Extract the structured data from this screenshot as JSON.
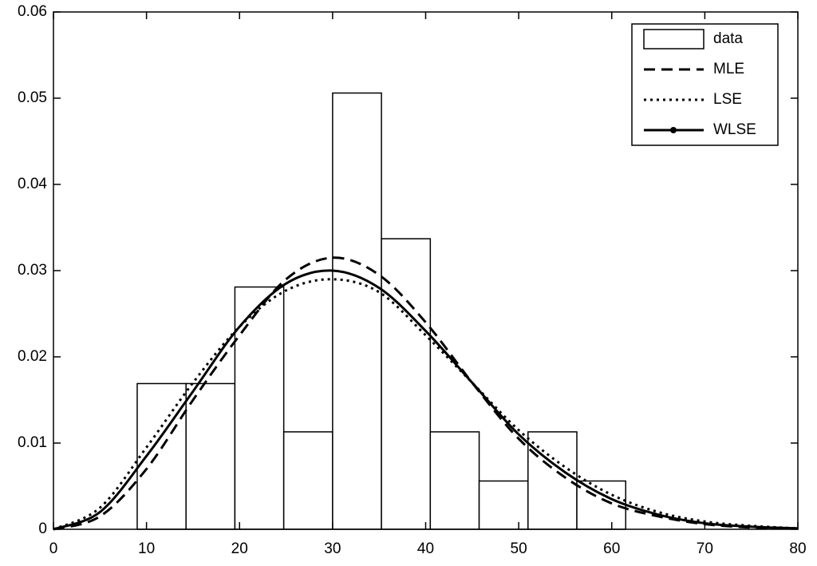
{
  "chart_data": {
    "type": "histogram",
    "histogram": {
      "name": "data",
      "color": "#ffffff",
      "bins": [
        9.0,
        14.25,
        19.5,
        24.75,
        30.0,
        35.25,
        40.5,
        45.75,
        51.0,
        56.25,
        61.5
      ],
      "values": [
        0.0169,
        0.0169,
        0.0281,
        0.0113,
        0.0506,
        0.0337,
        0.0113,
        0.0056,
        0.0113,
        0.0056
      ]
    },
    "x": [
      0,
      5,
      10,
      15,
      20,
      25,
      30,
      35,
      40,
      45,
      50,
      55,
      60,
      65,
      70,
      75,
      80
    ],
    "series": [
      {
        "name": "MLE",
        "color": "#000000",
        "style": "dashed",
        "values": [
          0,
          0.0015,
          0.007,
          0.015,
          0.0225,
          0.029,
          0.0315,
          0.0295,
          0.024,
          0.017,
          0.0105,
          0.006,
          0.003,
          0.0015,
          0.0006,
          0.0002,
          0.0001
        ]
      },
      {
        "name": "LSE",
        "color": "#000000",
        "style": "dotted",
        "values": [
          0,
          0.0025,
          0.0095,
          0.017,
          0.0235,
          0.0277,
          0.029,
          0.0275,
          0.0225,
          0.017,
          0.0115,
          0.0072,
          0.004,
          0.002,
          0.0009,
          0.0004,
          0.0001
        ]
      },
      {
        "name": "WLSE",
        "color": "#000000",
        "style": "solid-marker",
        "values": [
          0,
          0.002,
          0.0085,
          0.016,
          0.0235,
          0.0285,
          0.03,
          0.028,
          0.023,
          0.017,
          0.011,
          0.0066,
          0.0035,
          0.0017,
          0.0007,
          0.0003,
          0.0001
        ]
      }
    ],
    "xlim": [
      0,
      80
    ],
    "xticks": [
      0,
      10,
      20,
      30,
      40,
      50,
      60,
      70,
      80
    ],
    "ylim": [
      0,
      0.06
    ],
    "yticks": [
      0,
      0.01,
      0.02,
      0.03,
      0.04,
      0.05,
      0.06
    ],
    "legend": "upper-right"
  }
}
